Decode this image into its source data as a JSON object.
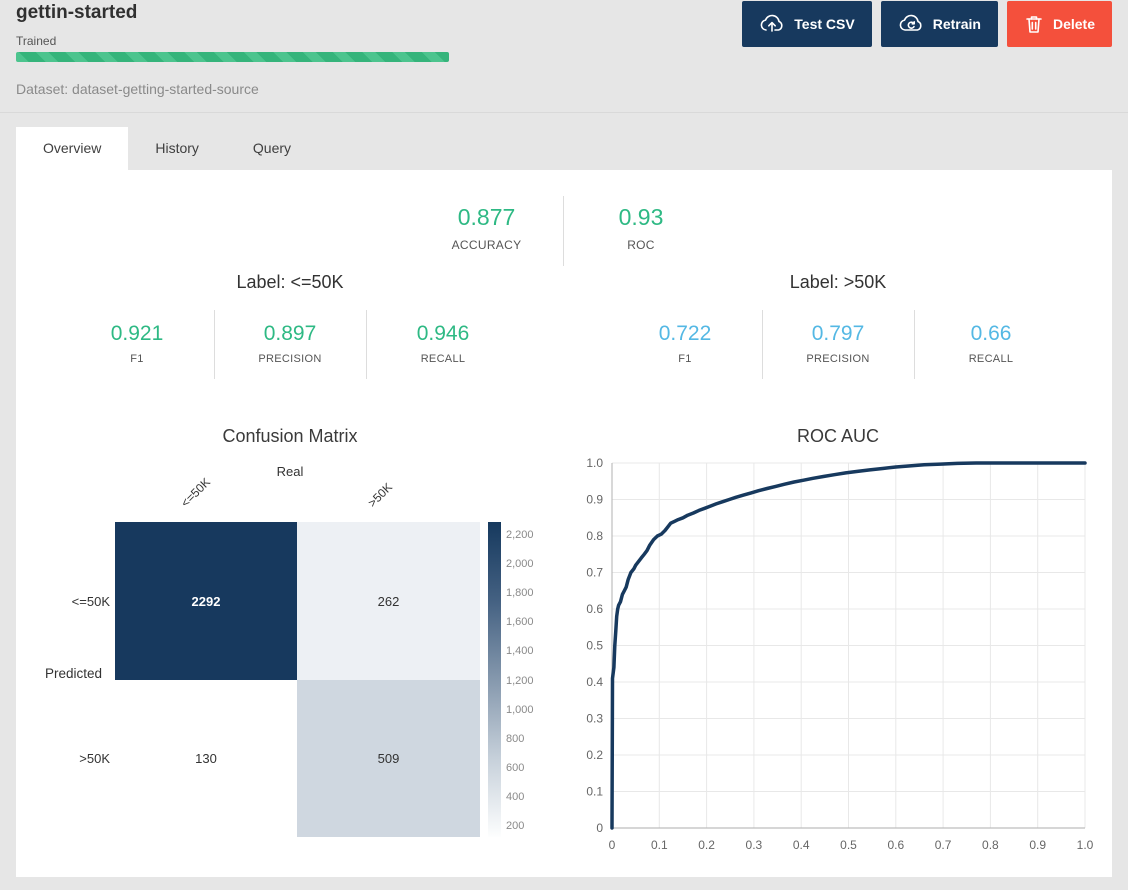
{
  "header": {
    "title": "gettin-started",
    "status": "Trained",
    "dataset": "Dataset: dataset-getting-started-source",
    "buttons": {
      "test_csv": "Test CSV",
      "retrain": "Retrain",
      "delete": "Delete"
    }
  },
  "tabs": [
    {
      "label": "Overview",
      "active": true
    },
    {
      "label": "History",
      "active": false
    },
    {
      "label": "Query",
      "active": false
    }
  ],
  "colors": {
    "green": "#2eb984",
    "blue": "#54b8e4",
    "navy": "#17395e",
    "red": "#f4503c"
  },
  "metrics": {
    "accuracy": {
      "value": "0.877",
      "label": "ACCURACY"
    },
    "roc": {
      "value": "0.93",
      "label": "ROC"
    }
  },
  "labels": [
    {
      "title": "Label: <=50K",
      "color": "#2eb984",
      "metrics": [
        {
          "value": "0.921",
          "label": "F1"
        },
        {
          "value": "0.897",
          "label": "PRECISION"
        },
        {
          "value": "0.946",
          "label": "RECALL"
        }
      ]
    },
    {
      "title": "Label: >50K",
      "color": "#54b8e4",
      "metrics": [
        {
          "value": "0.722",
          "label": "F1"
        },
        {
          "value": "0.797",
          "label": "PRECISION"
        },
        {
          "value": "0.66",
          "label": "RECALL"
        }
      ]
    }
  ],
  "chart_data": [
    {
      "type": "heatmap",
      "title": "Confusion Matrix",
      "x_axis_label": "Real",
      "y_axis_label": "Predicted",
      "columns": [
        "<=50K",
        ">50K"
      ],
      "rows": [
        "<=50K",
        ">50K"
      ],
      "values": [
        [
          2292,
          262
        ],
        [
          130,
          509
        ]
      ],
      "cell_colors": [
        [
          "#17395e",
          "#edf0f4"
        ],
        [
          "#ffffff",
          "#cfd7e0"
        ]
      ],
      "cell_text_colors": [
        [
          "#ffffff",
          "#333333"
        ],
        [
          "#333333",
          "#333333"
        ]
      ],
      "colorbar_ticks": [
        "2,200",
        "2,000",
        "1,800",
        "1,600",
        "1,400",
        "1,200",
        "1,000",
        "800",
        "600",
        "400",
        "200"
      ],
      "color_scale_min": "#ffffff",
      "color_scale_max": "#17395e"
    },
    {
      "type": "line",
      "title": "ROC AUC",
      "xlim": [
        0,
        1
      ],
      "ylim": [
        0,
        1
      ],
      "grid": true,
      "x_ticks": [
        "0",
        "0.1",
        "0.2",
        "0.3",
        "0.4",
        "0.5",
        "0.6",
        "0.7",
        "0.8",
        "0.9",
        "1.0"
      ],
      "y_ticks": [
        "0",
        "0.1",
        "0.2",
        "0.3",
        "0.4",
        "0.5",
        "0.6",
        "0.7",
        "0.8",
        "0.9",
        "1.0"
      ],
      "series": [
        {
          "name": "roc_curve",
          "color": "#17395e",
          "points": [
            [
              0,
              0
            ],
            [
              0.001,
              0.41
            ],
            [
              0.004,
              0.44
            ],
            [
              0.006,
              0.5
            ],
            [
              0.008,
              0.54
            ],
            [
              0.01,
              0.58
            ],
            [
              0.012,
              0.6
            ],
            [
              0.014,
              0.61
            ],
            [
              0.018,
              0.62
            ],
            [
              0.022,
              0.64
            ],
            [
              0.026,
              0.65
            ],
            [
              0.03,
              0.66
            ],
            [
              0.034,
              0.68
            ],
            [
              0.04,
              0.7
            ],
            [
              0.046,
              0.71
            ],
            [
              0.05,
              0.72
            ],
            [
              0.056,
              0.73
            ],
            [
              0.062,
              0.74
            ],
            [
              0.068,
              0.75
            ],
            [
              0.074,
              0.76
            ],
            [
              0.08,
              0.775
            ],
            [
              0.088,
              0.79
            ],
            [
              0.096,
              0.8
            ],
            [
              0.104,
              0.805
            ],
            [
              0.112,
              0.815
            ],
            [
              0.118,
              0.825
            ],
            [
              0.124,
              0.835
            ],
            [
              0.132,
              0.84
            ],
            [
              0.14,
              0.845
            ],
            [
              0.15,
              0.85
            ],
            [
              0.16,
              0.857
            ],
            [
              0.172,
              0.863
            ],
            [
              0.184,
              0.87
            ],
            [
              0.196,
              0.876
            ],
            [
              0.208,
              0.882
            ],
            [
              0.22,
              0.888
            ],
            [
              0.234,
              0.894
            ],
            [
              0.248,
              0.9
            ],
            [
              0.262,
              0.906
            ],
            [
              0.278,
              0.912
            ],
            [
              0.294,
              0.918
            ],
            [
              0.31,
              0.924
            ],
            [
              0.328,
              0.93
            ],
            [
              0.346,
              0.936
            ],
            [
              0.365,
              0.942
            ],
            [
              0.385,
              0.948
            ],
            [
              0.405,
              0.953
            ],
            [
              0.425,
              0.958
            ],
            [
              0.447,
              0.963
            ],
            [
              0.47,
              0.968
            ],
            [
              0.494,
              0.973
            ],
            [
              0.519,
              0.977
            ],
            [
              0.545,
              0.981
            ],
            [
              0.572,
              0.985
            ],
            [
              0.6,
              0.989
            ],
            [
              0.63,
              0.992
            ],
            [
              0.66,
              0.995
            ],
            [
              0.695,
              0.997
            ],
            [
              0.73,
              0.999
            ],
            [
              0.77,
              1.0
            ],
            [
              1.0,
              1.0
            ]
          ]
        }
      ]
    }
  ]
}
